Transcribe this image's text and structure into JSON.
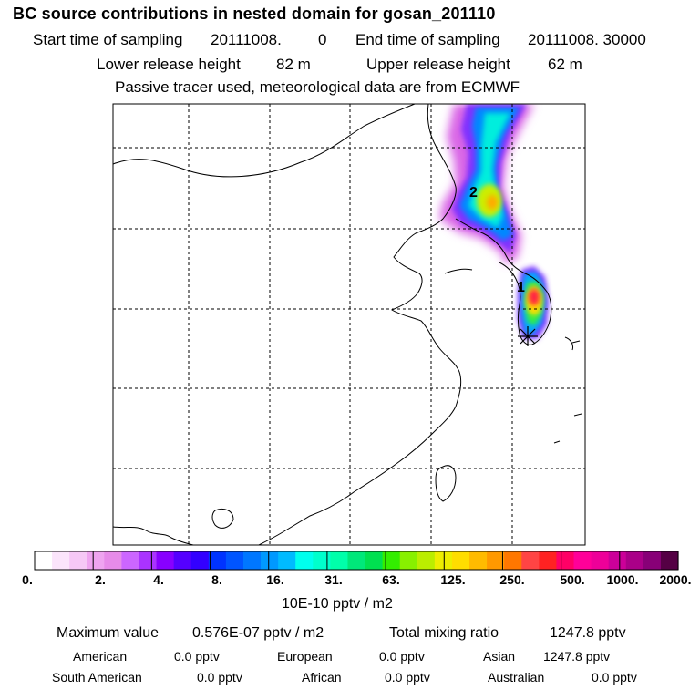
{
  "header": {
    "title": "BC  source contributions in nested domain for gosan_201110",
    "start_label": "Start time of sampling",
    "start_value": "20111008.",
    "start_hour": "0",
    "end_label": "End time of sampling",
    "end_value": "20111008. 30000",
    "lower_label": "Lower release height",
    "lower_value": "82 m",
    "upper_label": "Upper release height",
    "upper_value": "62 m",
    "note": "Passive tracer used, meteorological data are from ECMWF"
  },
  "map": {
    "labels": [
      {
        "text": "2"
      },
      {
        "text": "1"
      }
    ],
    "receptor": "gosan-receptor-marker"
  },
  "colorbar": {
    "ticks": [
      "0.",
      "2.",
      "4.",
      "8.",
      "16.",
      "31.",
      "63.",
      "125.",
      "250.",
      "500.",
      "1000.",
      "2000."
    ],
    "unit": "10E-10 pptv / m2",
    "colors": [
      "#ffffff",
      "#fbe4fb",
      "#f6c8f6",
      "#efa4f0",
      "#e78be9",
      "#cc66ff",
      "#aa33ff",
      "#8800ff",
      "#5500ff",
      "#3300ff",
      "#0033ff",
      "#0055ff",
      "#0077ff",
      "#0099ff",
      "#00bbff",
      "#00ffee",
      "#00ffcc",
      "#00ffaa",
      "#00e87a",
      "#00e050",
      "#33ee00",
      "#88f000",
      "#bbee00",
      "#eeee00",
      "#ffdd00",
      "#ffbb00",
      "#ff9900",
      "#ff7700",
      "#ff4444",
      "#ff2222",
      "#ff0066",
      "#ff0099",
      "#ee0099",
      "#cc0099",
      "#aa0088",
      "#880077",
      "#550044"
    ]
  },
  "stats": {
    "max_label": "Maximum value",
    "max_value": "0.576E-07 pptv / m2",
    "total_label": "Total mixing ratio",
    "total_value": "1247.8 pptv",
    "regions": [
      {
        "name": "American",
        "value": "0.0 pptv"
      },
      {
        "name": "European",
        "value": "0.0 pptv"
      },
      {
        "name": "Asian",
        "value": "1247.8 pptv"
      },
      {
        "name": "South American",
        "value": "0.0 pptv"
      },
      {
        "name": "African",
        "value": "0.0 pptv"
      },
      {
        "name": "Australian",
        "value": "0.0 pptv"
      }
    ]
  }
}
